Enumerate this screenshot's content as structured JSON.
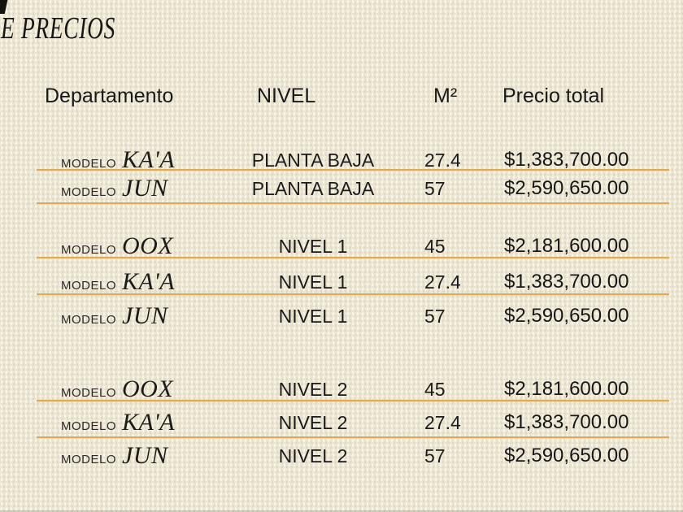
{
  "page": {
    "title": "E PRECIOS",
    "background_color": "#ece6d2",
    "divider_color": "#e2a854",
    "text_color": "#1c1c1c"
  },
  "table": {
    "model_prefix": "MODELO",
    "columns": [
      "Departamento",
      "NIVEL",
      "M²",
      "Precio total"
    ],
    "groups": [
      {
        "rows": [
          {
            "model": "KA'A",
            "nivel": "PLANTA BAJA",
            "m2": "27.4",
            "precio": "$1,383,700.00",
            "divider": true
          },
          {
            "model": "JUN",
            "nivel": "PLANTA BAJA",
            "m2": "57",
            "precio": "$2,590,650.00",
            "divider": true
          }
        ]
      },
      {
        "rows": [
          {
            "model": "OOX",
            "nivel": "NIVEL 1",
            "m2": "45",
            "precio": "$2,181,600.00",
            "divider": true
          },
          {
            "model": "KA'A",
            "nivel": "NIVEL 1",
            "m2": "27.4",
            "precio": "$1,383,700.00",
            "divider": true
          },
          {
            "model": "JUN",
            "nivel": "NIVEL 1",
            "m2": "57",
            "precio": "$2,590,650.00",
            "divider": false
          }
        ]
      },
      {
        "rows": [
          {
            "model": "OOX",
            "nivel": "NIVEL 2",
            "m2": "45",
            "precio": "$2,181,600.00",
            "divider": true
          },
          {
            "model": "KA'A",
            "nivel": "NIVEL 2",
            "m2": "27.4",
            "precio": "$1,383,700.00",
            "divider": true
          },
          {
            "model": "JUN",
            "nivel": "NIVEL 2",
            "m2": "57",
            "precio": "$2,590,650.00",
            "divider": false
          }
        ]
      }
    ]
  }
}
